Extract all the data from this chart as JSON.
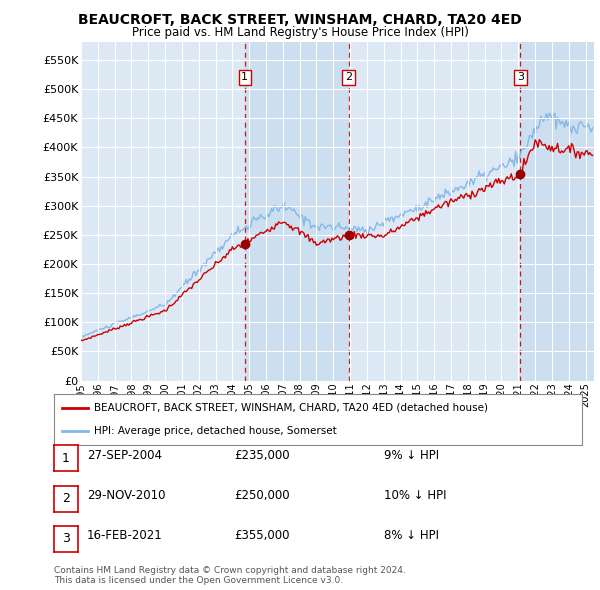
{
  "title": "BEAUCROFT, BACK STREET, WINSHAM, CHARD, TA20 4ED",
  "subtitle": "Price paid vs. HM Land Registry's House Price Index (HPI)",
  "ylabel_ticks": [
    "£0",
    "£50K",
    "£100K",
    "£150K",
    "£200K",
    "£250K",
    "£300K",
    "£350K",
    "£400K",
    "£450K",
    "£500K",
    "£550K"
  ],
  "ytick_values": [
    0,
    50000,
    100000,
    150000,
    200000,
    250000,
    300000,
    350000,
    400000,
    450000,
    500000,
    550000
  ],
  "ylim": [
    0,
    580000
  ],
  "background_color": "#ffffff",
  "plot_bg_color": "#dce9f5",
  "plot_bg_highlight": "#ccdff0",
  "grid_color": "#ffffff",
  "sale_color": "#cc0000",
  "hpi_color": "#85b8e8",
  "vline_color": "#cc0000",
  "sale_marker_color": "#990000",
  "transactions": [
    {
      "num": 1,
      "date_num": 2004.74,
      "price": 235000,
      "label": "1"
    },
    {
      "num": 2,
      "date_num": 2010.91,
      "price": 250000,
      "label": "2"
    },
    {
      "num": 3,
      "date_num": 2021.12,
      "price": 355000,
      "label": "3"
    }
  ],
  "legend_entries": [
    {
      "label": "BEAUCROFT, BACK STREET, WINSHAM, CHARD, TA20 4ED (detached house)",
      "color": "#cc0000"
    },
    {
      "label": "HPI: Average price, detached house, Somerset",
      "color": "#85b8e8"
    }
  ],
  "table_rows": [
    {
      "num": 1,
      "date": "27-SEP-2004",
      "price": "£235,000",
      "hpi": "9% ↓ HPI"
    },
    {
      "num": 2,
      "date": "29-NOV-2010",
      "price": "£250,000",
      "hpi": "10% ↓ HPI"
    },
    {
      "num": 3,
      "date": "16-FEB-2021",
      "price": "£355,000",
      "hpi": "8% ↓ HPI"
    }
  ],
  "footer": "Contains HM Land Registry data © Crown copyright and database right 2024.\nThis data is licensed under the Open Government Licence v3.0.",
  "xmin": 1995.0,
  "xmax": 2025.5,
  "xtick_years": [
    1995,
    1996,
    1997,
    1998,
    1999,
    2000,
    2001,
    2002,
    2003,
    2004,
    2005,
    2006,
    2007,
    2008,
    2009,
    2010,
    2011,
    2012,
    2013,
    2014,
    2015,
    2016,
    2017,
    2018,
    2019,
    2020,
    2021,
    2022,
    2023,
    2024,
    2025
  ]
}
